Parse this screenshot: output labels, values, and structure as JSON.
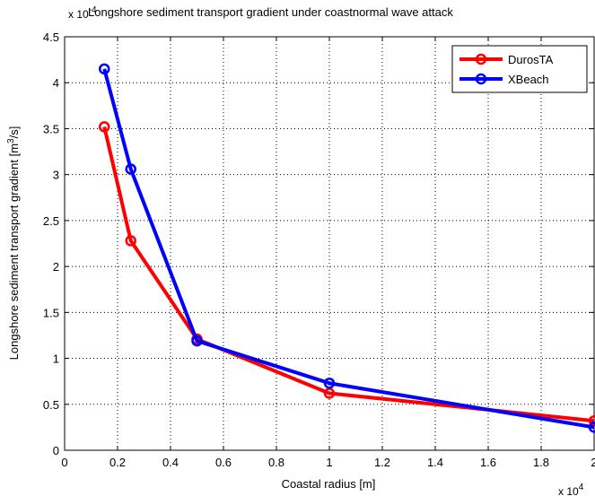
{
  "chart_data": {
    "type": "line",
    "title": "Longshore sediment transport gradient under coastnormal wave attack",
    "xlabel": "Coastal radius [m]",
    "ylabel": "Longshore sediment transport gradient [m",
    "ylabel_sup": "3",
    "ylabel_tail": "/s]",
    "x_multiplier": "x 10",
    "x_multiplier_exp": "4",
    "y_multiplier": "x 10",
    "y_multiplier_exp": "-4",
    "xlim": [
      0,
      2
    ],
    "ylim": [
      0,
      4.5
    ],
    "xticks": [
      "0",
      "0.2",
      "0.4",
      "0.6",
      "0.8",
      "1",
      "1.2",
      "1.4",
      "1.6",
      "1.8",
      "2"
    ],
    "yticks": [
      "0",
      "0.5",
      "1",
      "1.5",
      "2",
      "2.5",
      "3",
      "3.5",
      "4",
      "4.5"
    ],
    "grid": true,
    "legend_position": "top-right",
    "series": [
      {
        "name": "DurosTA",
        "color": "#ff0000",
        "x": [
          0.15,
          0.25,
          0.5,
          1.0,
          2.0
        ],
        "y": [
          3.52,
          2.28,
          1.21,
          0.62,
          0.32
        ]
      },
      {
        "name": "XBeach",
        "color": "#0000ff",
        "x": [
          0.15,
          0.25,
          0.5,
          1.0,
          2.0
        ],
        "y": [
          4.15,
          3.06,
          1.19,
          0.73,
          0.25
        ]
      }
    ]
  }
}
